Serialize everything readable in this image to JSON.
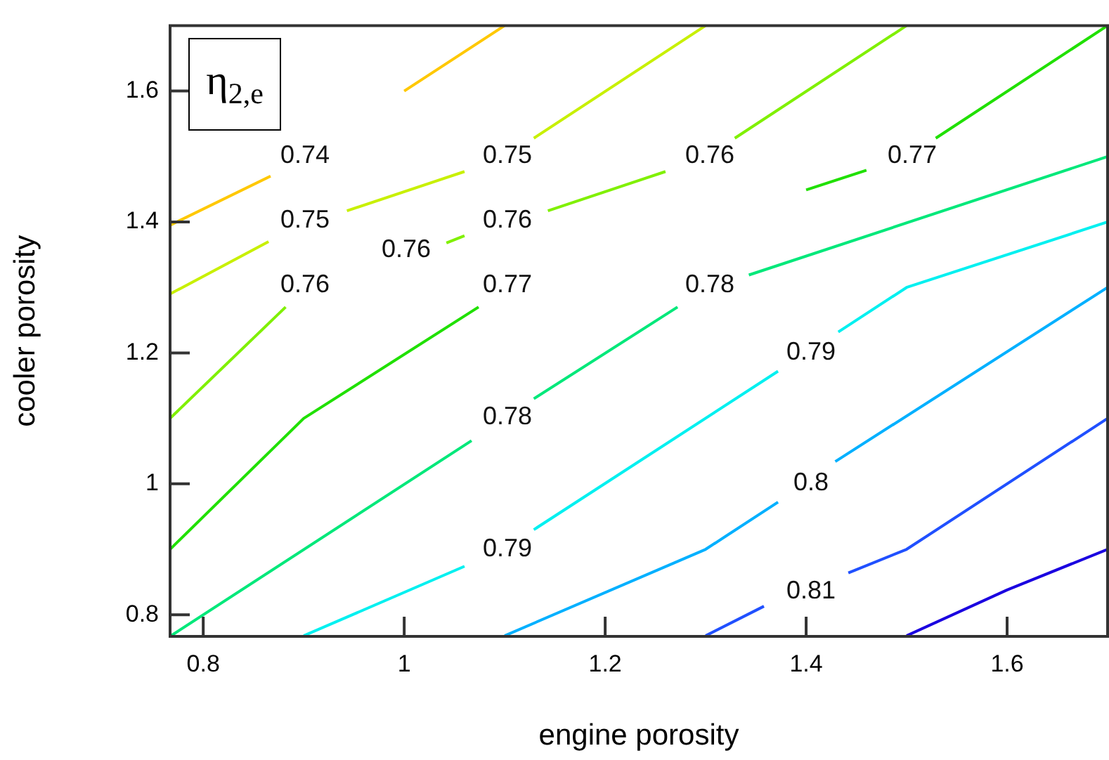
{
  "chart_data": {
    "type": "line",
    "title": "η$_{2,e}$",
    "xlabel": "engine porosity",
    "ylabel": "cooler porosity",
    "xlim": [
      0.767,
      1.7
    ],
    "ylim": [
      0.767,
      1.7
    ],
    "xticks": [
      0.8,
      1.0,
      1.2,
      1.4,
      1.6
    ],
    "yticks": [
      0.8,
      1.0,
      1.2,
      1.4,
      1.6
    ],
    "grid": false,
    "legend": false,
    "marker": "none",
    "series": [
      {
        "color": "#ffc800",
        "x": [
          0.767,
          0.867,
          null,
          1.0,
          1.1
        ],
        "values": [
          1.395,
          1.47,
          null,
          1.6,
          1.7
        ]
      },
      {
        "color": "#c8f000",
        "x": [
          0.767,
          0.865,
          null,
          0.943,
          1.06,
          null,
          1.129,
          1.3
        ],
        "values": [
          1.29,
          1.37,
          null,
          1.417,
          1.477,
          null,
          1.528,
          1.7
        ]
      },
      {
        "color": "#80f000",
        "x": [
          0.767,
          0.882,
          null,
          1.042,
          1.06,
          null,
          1.143,
          1.26,
          null,
          1.329,
          1.5
        ],
        "values": [
          1.1,
          1.27,
          null,
          1.368,
          1.379,
          null,
          1.417,
          1.477,
          null,
          1.528,
          1.7
        ]
      },
      {
        "color": "#20e000",
        "x": [
          0.767,
          0.9,
          1.074,
          null,
          1.4,
          1.46,
          null,
          1.529,
          1.7
        ],
        "values": [
          0.9,
          1.1,
          1.27,
          null,
          1.449,
          1.479,
          null,
          1.528,
          1.7
        ]
      },
      {
        "color": "#00e87a",
        "x": [
          0.767,
          1.067,
          null,
          1.129,
          1.272,
          null,
          1.343,
          1.7
        ],
        "values": [
          0.767,
          1.066,
          null,
          1.13,
          1.27,
          null,
          1.319,
          1.5
        ]
      },
      {
        "color": "#00f0f0",
        "x": [
          0.9,
          1.06,
          null,
          1.129,
          1.372,
          null,
          1.432,
          1.5,
          1.7
        ],
        "values": [
          0.768,
          0.874,
          null,
          0.93,
          1.172,
          null,
          1.232,
          1.3,
          1.4
        ]
      },
      {
        "color": "#00b0ff",
        "x": [
          1.1,
          1.3,
          1.372,
          null,
          1.429,
          1.7
        ],
        "values": [
          0.768,
          0.9,
          0.972,
          null,
          1.034,
          1.3
        ]
      },
      {
        "color": "#2050ff",
        "x": [
          1.3,
          1.358,
          null,
          1.442,
          1.5,
          1.7
        ],
        "values": [
          0.768,
          0.813,
          null,
          0.864,
          0.9,
          1.1
        ]
      },
      {
        "color": "#1a00e0",
        "x": [
          1.5,
          1.6,
          1.7
        ],
        "values": [
          0.768,
          0.838,
          0.9
        ]
      }
    ],
    "annotations": [
      "0.74",
      "0.75",
      "0.75",
      "0.76",
      "0.76",
      "0.76",
      "0.76",
      "0.77",
      "0.77",
      "0.78",
      "0.78",
      "0.79",
      "0.79",
      "0.8",
      "0.81"
    ]
  }
}
